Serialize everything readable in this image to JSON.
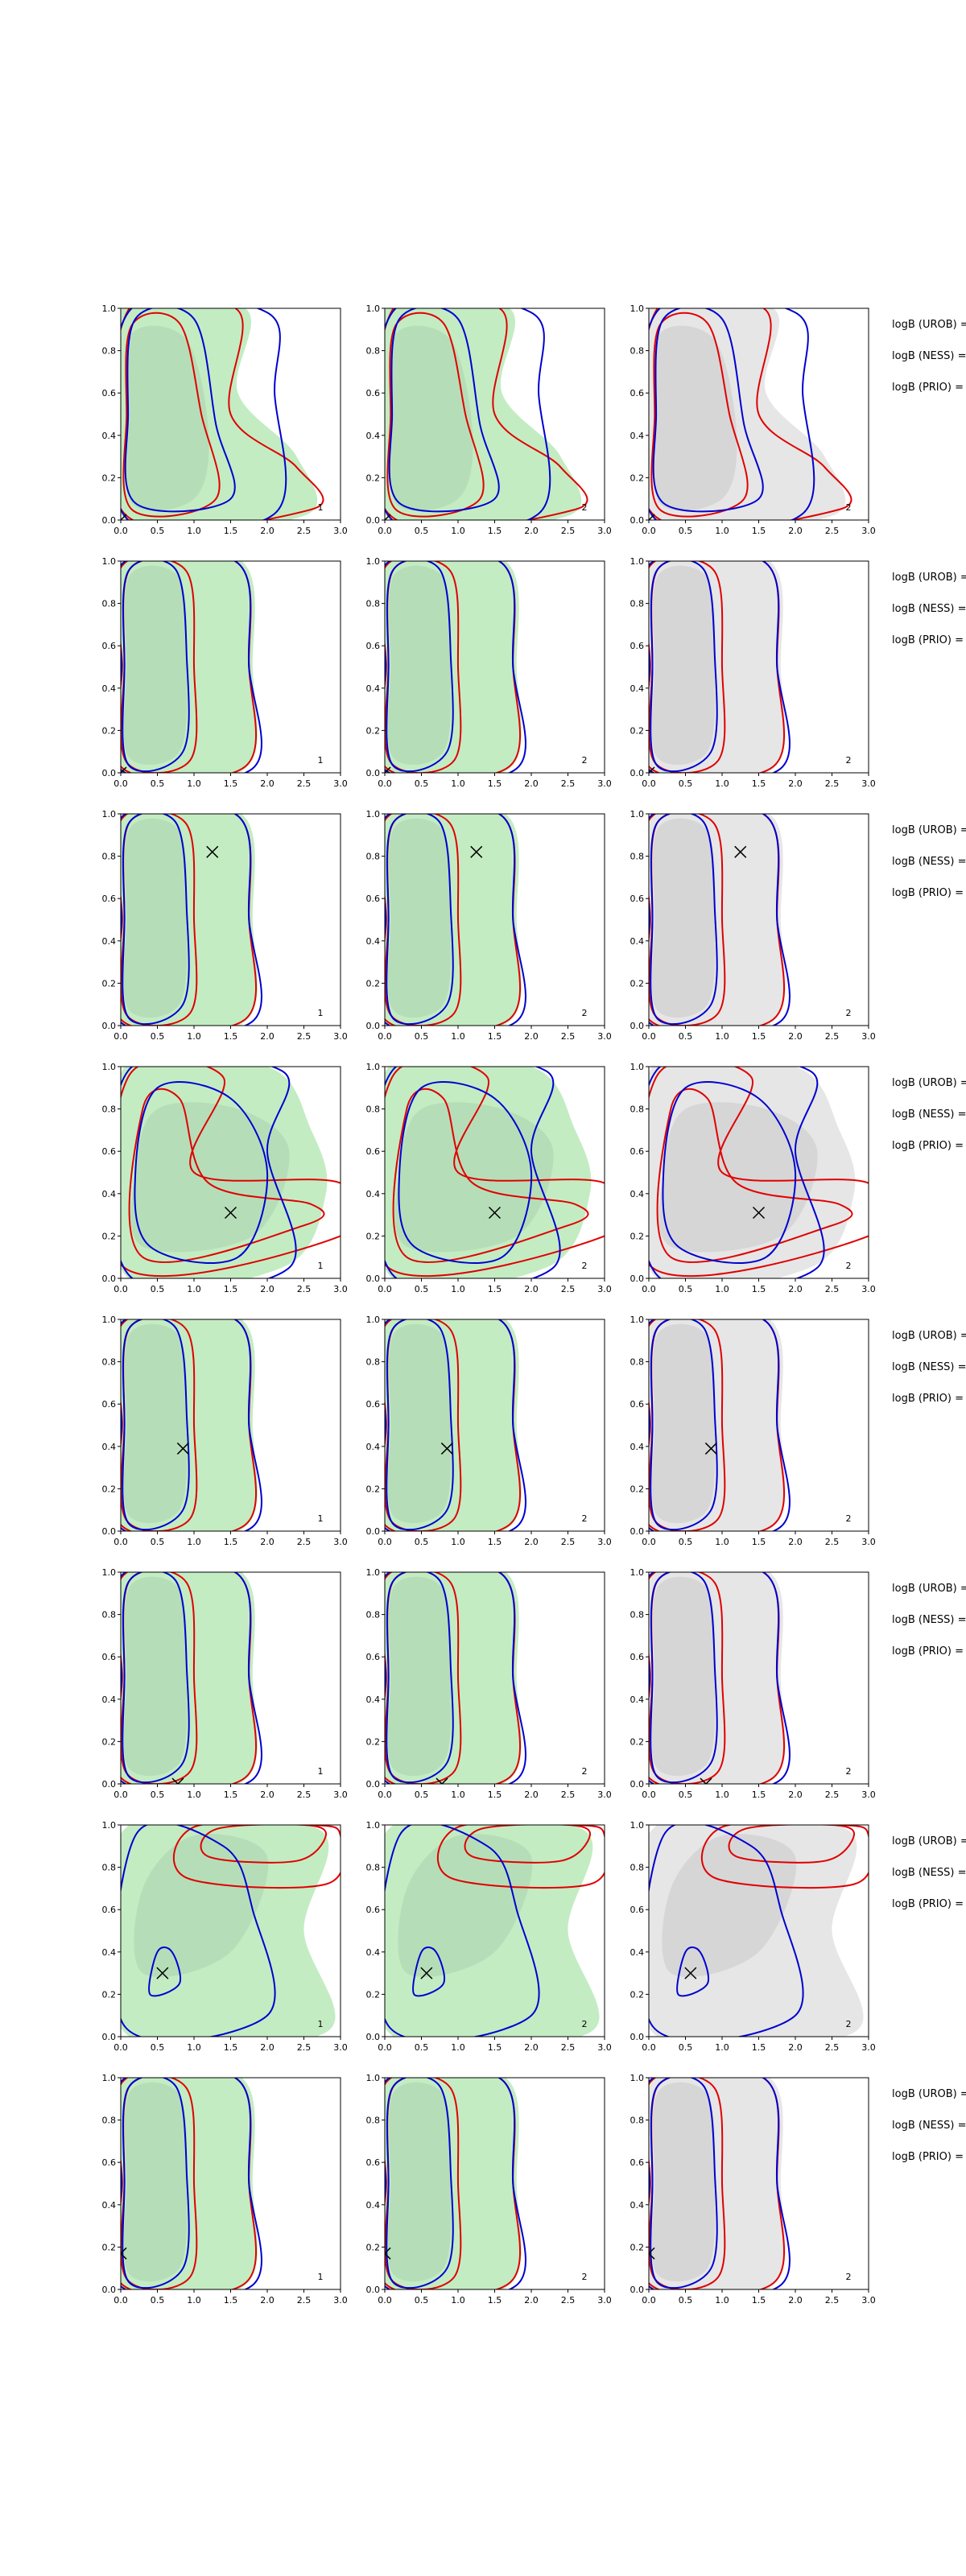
{
  "colors": {
    "green_fill": "#c3ecc3",
    "green_inner": "#b5deb8",
    "gray_fill": "#e6e6e6",
    "gray_inner": "#d6d6d6",
    "red": "#e00000",
    "blue": "#0000d0",
    "marker": "#000000"
  },
  "chart_data": {
    "type": "contour",
    "layout": {
      "rows": 8,
      "cols": 3
    },
    "xlim": [
      0,
      3.0
    ],
    "ylim": [
      0,
      1.0
    ],
    "x_ticks": [
      "0.0",
      "0.5",
      "1.0",
      "1.5",
      "2.0",
      "2.5",
      "3.0"
    ],
    "y_ticks": [
      "0.0",
      "0.2",
      "0.4",
      "0.6",
      "0.8",
      "1.0"
    ],
    "column_labels": [
      "1",
      "2",
      "2"
    ],
    "column_fill": [
      "green",
      "green",
      "gray"
    ],
    "side_labels": [
      "logB (UROB) =",
      "logB (NESS) =",
      "logB (PRIO) ="
    ],
    "rows": [
      {
        "marker": [
          0.0,
          0.0
        ],
        "shape": "tall_low_spread"
      },
      {
        "marker": [
          0.0,
          0.0
        ],
        "shape": "tall_narrow"
      },
      {
        "marker": [
          1.25,
          0.82
        ],
        "shape": "tall_narrow"
      },
      {
        "marker": [
          1.5,
          0.31
        ],
        "shape": "wide_mid"
      },
      {
        "marker": [
          0.85,
          0.39
        ],
        "shape": "tall_narrow"
      },
      {
        "marker": [
          0.78,
          0.0
        ],
        "shape": "tall_narrow"
      },
      {
        "marker": [
          0.57,
          0.3
        ],
        "shape": "wide_top"
      },
      {
        "marker": [
          0.0,
          0.17
        ],
        "shape": "tall_narrow"
      }
    ]
  }
}
